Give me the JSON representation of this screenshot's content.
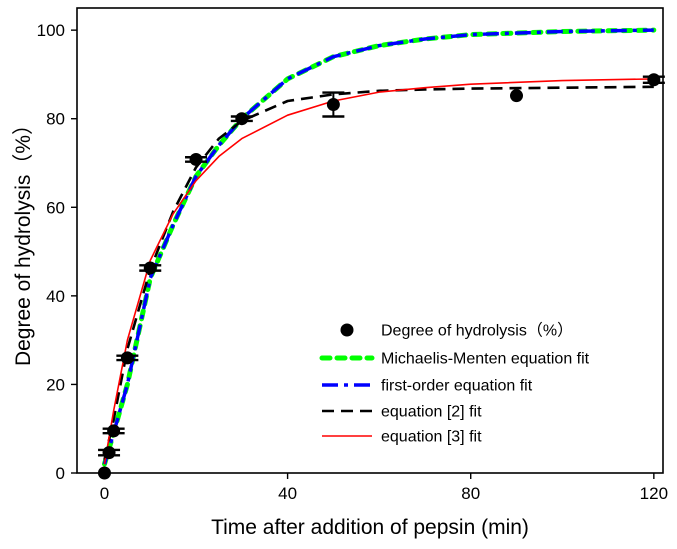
{
  "chart_data": {
    "type": "scatter",
    "xlabel": "Time after addition of pepsin (min)",
    "ylabel": "Degree of hydrolysis（%）",
    "xlim": [
      -6,
      122
    ],
    "ylim": [
      0,
      105
    ],
    "xticks": [
      0,
      40,
      80,
      120
    ],
    "yticks": [
      0,
      20,
      40,
      60,
      80,
      100
    ],
    "grid": false,
    "legend_position": "bottom-right",
    "points": {
      "name": "Degree of hydrolysis（%）",
      "color": "#000000",
      "x": [
        0,
        1,
        2,
        5,
        10,
        20,
        30,
        50,
        90,
        120
      ],
      "y": [
        0,
        4.6,
        9.5,
        26,
        46.3,
        70.8,
        80,
        83.2,
        85.2,
        88.8
      ],
      "error": [
        0,
        0.6,
        0.5,
        0.5,
        0.6,
        0.5,
        0.5,
        2.7,
        0,
        0.7
      ]
    },
    "series": [
      {
        "name": "Michaelis-Menten equation fit",
        "color": "#00ff00",
        "style": "dotted",
        "x": [
          0,
          2,
          5,
          10,
          15,
          20,
          25,
          30,
          40,
          50,
          60,
          70,
          80,
          100,
          120
        ],
        "y": [
          2,
          9,
          20,
          44,
          56,
          67,
          74,
          80,
          89,
          94,
          96.5,
          98,
          99,
          99.7,
          100
        ]
      },
      {
        "name": "first-order equation fit",
        "color": "#0000ff",
        "style": "dash-dot",
        "x": [
          0,
          2,
          5,
          10,
          15,
          20,
          25,
          30,
          40,
          50,
          60,
          70,
          80,
          100,
          120
        ],
        "y": [
          2,
          9,
          20,
          44,
          56,
          67,
          74,
          80,
          89,
          94,
          96.5,
          98,
          99,
          99.7,
          100
        ]
      },
      {
        "name": "equation [2] fit",
        "color": "#000000",
        "style": "dashed",
        "x": [
          0,
          2,
          5,
          10,
          15,
          20,
          25,
          30,
          40,
          50,
          60,
          70,
          80,
          100,
          120
        ],
        "y": [
          3,
          12,
          28,
          46,
          59,
          69,
          75.5,
          79.5,
          84,
          85.5,
          86.3,
          86.6,
          86.8,
          87,
          87.2
        ]
      },
      {
        "name": "equation [3] fit",
        "color": "#ff0000",
        "style": "solid",
        "x": [
          0,
          2,
          5,
          10,
          15,
          20,
          25,
          30,
          40,
          50,
          60,
          70,
          80,
          100,
          120
        ],
        "y": [
          2,
          14,
          30,
          48,
          58.5,
          66,
          71.5,
          75.5,
          80.8,
          84,
          86,
          87,
          87.8,
          88.6,
          89
        ]
      }
    ]
  }
}
